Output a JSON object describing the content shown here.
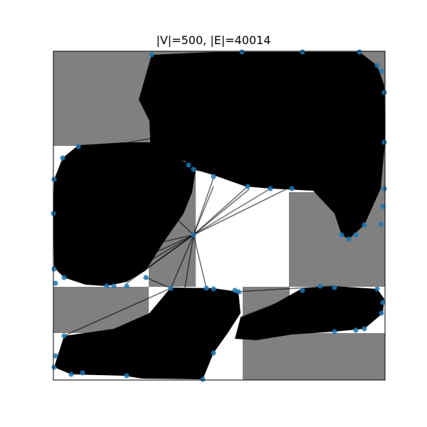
{
  "chart_data": {
    "type": "scatter",
    "title": "|V|=500, |E|=40014",
    "xlabel": "",
    "ylabel": "",
    "ticks": "none",
    "legend": "none",
    "grid": false,
    "colors": {
      "obstacle": "#808080",
      "edge": "#000000",
      "node": "#1f77b4",
      "background": "#ffffff",
      "frame": "#000000"
    }
  }
}
